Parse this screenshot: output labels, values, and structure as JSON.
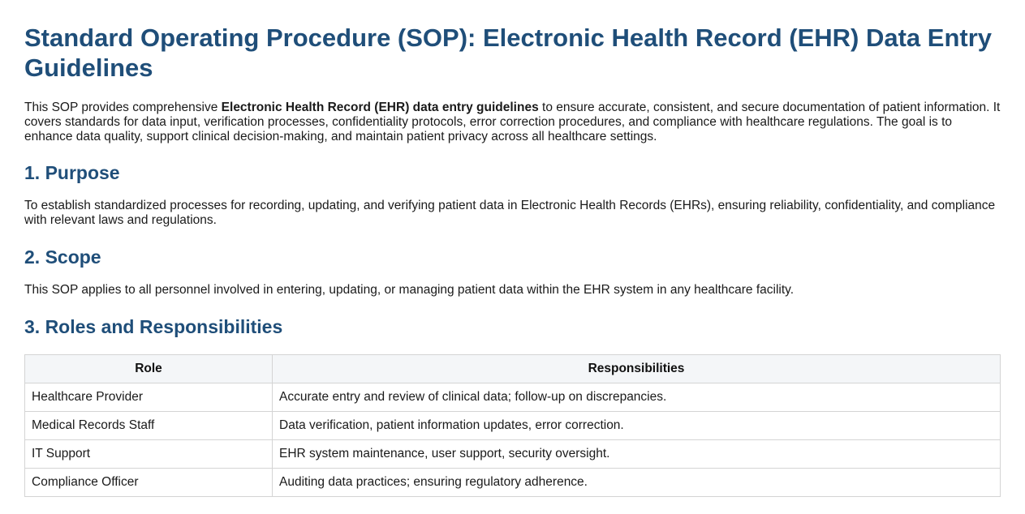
{
  "document": {
    "title": "Standard Operating Procedure (SOP): Electronic Health Record (EHR) Data Entry Guidelines",
    "intro": {
      "lead": "This SOP provides comprehensive ",
      "bold": "Electronic Health Record (EHR) data entry guidelines",
      "rest": " to ensure accurate, consistent, and secure documentation of patient information. It covers standards for data input, verification processes, confidentiality protocols, error correction procedures, and compliance with healthcare regulations. The goal is to enhance data quality, support clinical decision-making, and maintain patient privacy across all healthcare settings."
    },
    "sections": [
      {
        "heading": "1. Purpose",
        "text": "To establish standardized processes for recording, updating, and verifying patient data in Electronic Health Records (EHRs), ensuring reliability, confidentiality, and compliance with relevant laws and regulations."
      },
      {
        "heading": "2. Scope",
        "text": "This SOP applies to all personnel involved in entering, updating, or managing patient data within the EHR system in any healthcare facility."
      },
      {
        "heading": "3. Roles and Responsibilities"
      }
    ],
    "roles_table": {
      "headers": [
        "Role",
        "Responsibilities"
      ],
      "rows": [
        [
          "Healthcare Provider",
          "Accurate entry and review of clinical data; follow-up on discrepancies."
        ],
        [
          "Medical Records Staff",
          "Data verification, patient information updates, error correction."
        ],
        [
          "IT Support",
          "EHR system maintenance, user support, security oversight."
        ],
        [
          "Compliance Officer",
          "Auditing data practices; ensuring regulatory adherence."
        ]
      ]
    }
  }
}
